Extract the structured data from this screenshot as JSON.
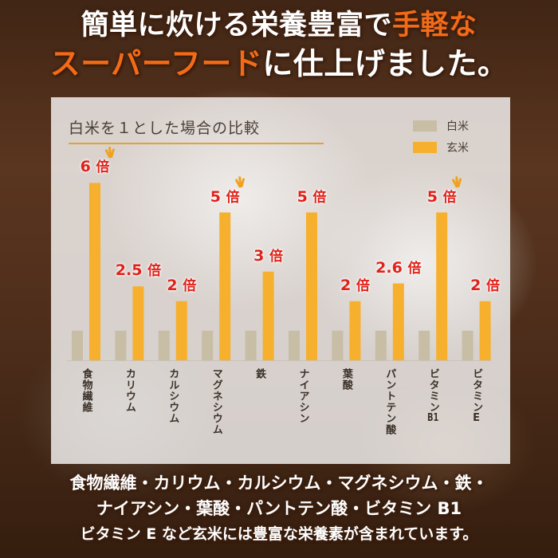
{
  "headline": {
    "line1_a": "簡単に炊ける栄養豊富で",
    "line1_b": "手軽な",
    "line2_a": "スーパーフード",
    "line2_b": "に仕上げました。"
  },
  "colors": {
    "accent": "#f36a17",
    "value_label": "#e0221a",
    "white_rice": "#c8bda5",
    "brown_rice": "#f6b02e",
    "sparkle": "#f0a21e"
  },
  "chart_data": {
    "type": "bar",
    "title": "白米を１とした場合の比較",
    "legend": [
      "白米",
      "玄米"
    ],
    "legend_position": "top-right",
    "categories": [
      "食物繊維",
      "カリウム",
      "カルシウム",
      "マグネシウム",
      "鉄",
      "ナイアシン",
      "葉酸",
      "パントテン酸",
      "ビタミンB1",
      "ビタミンE"
    ],
    "series": [
      {
        "name": "白米",
        "values": [
          1,
          1,
          1,
          1,
          1,
          1,
          1,
          1,
          1,
          1
        ]
      },
      {
        "name": "玄米",
        "values": [
          6,
          2.5,
          2,
          5,
          3,
          5,
          2,
          2.6,
          5,
          2
        ]
      }
    ],
    "value_labels": [
      "6",
      "2.5",
      "2",
      "5",
      "3",
      "5",
      "2",
      "2.6",
      "5",
      "2"
    ],
    "value_unit": "倍",
    "highlighted": [
      0,
      3,
      8
    ],
    "ylim": [
      0,
      6.2
    ],
    "grid": false
  },
  "footer": {
    "line1": "食物繊維・カリウム・カルシウム・マグネシウム・鉄・",
    "line2": "ナイアシン・葉酸・パントテン酸・ビタミン B1",
    "line3": "ビタミン E など玄米には豊富な栄養素が含まれています。"
  }
}
